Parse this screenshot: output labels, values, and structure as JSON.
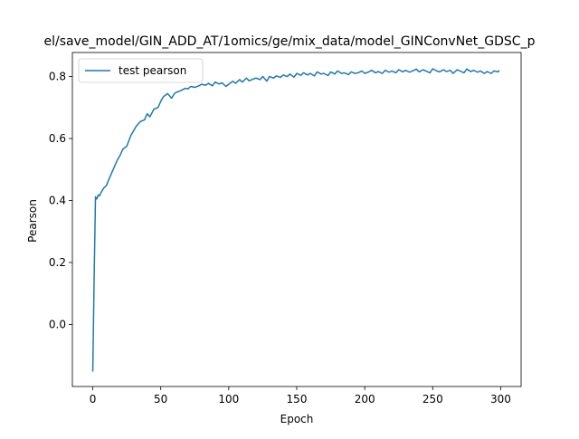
{
  "chart_data": {
    "type": "line",
    "title": "el/save_model/GIN_ADD_AT/1omics/ge/mix_data/model_GINConvNet_GDSC_p",
    "xlabel": "Epoch",
    "ylabel": "Pearson",
    "xlim": [
      -15,
      315
    ],
    "ylim": [
      -0.2,
      0.8775
    ],
    "xticks": [
      0,
      50,
      100,
      150,
      200,
      250,
      300
    ],
    "yticks": [
      0.0,
      0.2,
      0.4,
      0.6,
      0.8
    ],
    "xtick_labels": [
      "0",
      "50",
      "100",
      "150",
      "200",
      "250",
      "300"
    ],
    "ytick_labels": [
      "0.0",
      "0.2",
      "0.4",
      "0.6",
      "0.8"
    ],
    "grid": false,
    "legend": {
      "position": "upper-left"
    },
    "series": [
      {
        "name": "test pearson",
        "color": "#1f77b4",
        "x": [
          0,
          1,
          2,
          3,
          4,
          5,
          6,
          8,
          10,
          12,
          15,
          18,
          20,
          22,
          25,
          28,
          30,
          32,
          35,
          38,
          40,
          42,
          45,
          48,
          50,
          52,
          55,
          58,
          60,
          62,
          65,
          68,
          70,
          72,
          75,
          78,
          80,
          83,
          85,
          88,
          90,
          93,
          95,
          98,
          100,
          103,
          105,
          108,
          110,
          113,
          115,
          118,
          120,
          123,
          125,
          128,
          130,
          133,
          135,
          138,
          140,
          143,
          145,
          148,
          150,
          153,
          155,
          158,
          160,
          163,
          165,
          168,
          170,
          173,
          175,
          178,
          180,
          183,
          185,
          188,
          190,
          193,
          195,
          198,
          200,
          203,
          205,
          208,
          210,
          213,
          215,
          218,
          220,
          223,
          225,
          228,
          230,
          233,
          235,
          238,
          240,
          243,
          245,
          248,
          250,
          253,
          255,
          258,
          260,
          263,
          265,
          268,
          270,
          273,
          275,
          278,
          280,
          283,
          285,
          288,
          290,
          293,
          295,
          298,
          299
        ],
        "values": [
          -0.152,
          0.15,
          0.412,
          0.405,
          0.418,
          0.415,
          0.425,
          0.44,
          0.448,
          0.47,
          0.5,
          0.53,
          0.545,
          0.565,
          0.575,
          0.61,
          0.625,
          0.64,
          0.655,
          0.66,
          0.68,
          0.67,
          0.695,
          0.7,
          0.72,
          0.735,
          0.745,
          0.73,
          0.745,
          0.75,
          0.755,
          0.762,
          0.76,
          0.768,
          0.765,
          0.77,
          0.775,
          0.772,
          0.778,
          0.77,
          0.782,
          0.776,
          0.78,
          0.768,
          0.775,
          0.785,
          0.778,
          0.79,
          0.782,
          0.795,
          0.786,
          0.792,
          0.795,
          0.79,
          0.8,
          0.785,
          0.8,
          0.795,
          0.802,
          0.797,
          0.805,
          0.8,
          0.808,
          0.798,
          0.81,
          0.804,
          0.812,
          0.805,
          0.81,
          0.802,
          0.815,
          0.808,
          0.81,
          0.803,
          0.815,
          0.808,
          0.818,
          0.81,
          0.812,
          0.806,
          0.815,
          0.81,
          0.812,
          0.818,
          0.81,
          0.815,
          0.82,
          0.812,
          0.816,
          0.81,
          0.82,
          0.814,
          0.818,
          0.812,
          0.822,
          0.815,
          0.82,
          0.814,
          0.818,
          0.824,
          0.815,
          0.822,
          0.818,
          0.812,
          0.825,
          0.818,
          0.815,
          0.822,
          0.816,
          0.82,
          0.81,
          0.822,
          0.818,
          0.812,
          0.824,
          0.816,
          0.82,
          0.814,
          0.818,
          0.81,
          0.816,
          0.81,
          0.818,
          0.815,
          0.82
        ]
      }
    ]
  }
}
